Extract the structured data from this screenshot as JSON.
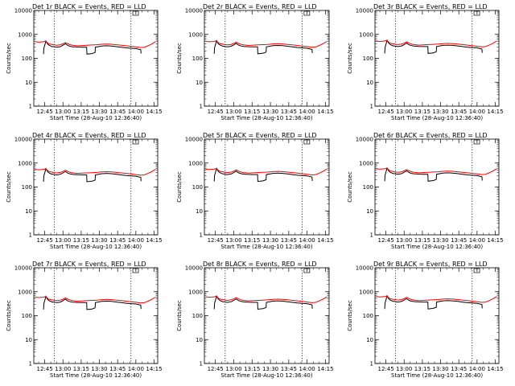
{
  "chart_data": {
    "type": "line",
    "xlabel": "Start Time (28-Aug-10 12:36:40)",
    "ylabel": "Counts/sec",
    "x_ticks": [
      "12:45",
      "13:00",
      "13:15",
      "13:30",
      "13:45",
      "14:00",
      "14:15"
    ],
    "x_tick_minutes": [
      45,
      60,
      75,
      90,
      105,
      120,
      135
    ],
    "xlim_minutes_after_12": [
      36,
      138
    ],
    "y_scale": "log",
    "ylim": [
      1,
      10000
    ],
    "y_ticks": [
      "1",
      "10",
      "100",
      "1000",
      "10000"
    ],
    "y_tick_values": [
      1,
      10,
      100,
      1000,
      10000
    ],
    "vertical_dashed_lines_minutes": [
      53,
      116
    ],
    "series_colors": {
      "events": "#000000",
      "lld": "#ff0000"
    },
    "panels": [
      {
        "title": "Det 1r BLACK = Events, RED = LLD"
      },
      {
        "title": "Det 2r BLACK = Events, RED = LLD"
      },
      {
        "title": "Det 3r BLACK = Events, RED = LLD"
      },
      {
        "title": "Det 4r BLACK = Events, RED = LLD"
      },
      {
        "title": "Det 5r BLACK = Events, RED = LLD"
      },
      {
        "title": "Det 6r BLACK = Events, RED = LLD"
      },
      {
        "title": "Det 7r BLACK = Events, RED = LLD"
      },
      {
        "title": "Det 8r BLACK = Events, RED = LLD"
      },
      {
        "title": "Det 9r BLACK = Events, RED = LLD"
      }
    ],
    "lld": {
      "x_minutes": [
        37,
        40,
        44,
        46,
        47,
        48,
        49,
        50,
        51,
        52,
        53,
        55,
        58,
        60,
        62,
        64,
        66,
        68,
        70,
        72,
        76,
        80,
        84,
        88,
        92,
        96,
        100,
        104,
        108,
        112,
        116,
        120,
        124,
        127,
        130,
        133,
        136
      ],
      "y": [
        560,
        540,
        560,
        600,
        520,
        470,
        450,
        440,
        430,
        420,
        410,
        400,
        420,
        460,
        520,
        460,
        420,
        400,
        390,
        380,
        390,
        400,
        410,
        420,
        440,
        450,
        440,
        420,
        400,
        380,
        360,
        340,
        320,
        330,
        380,
        450,
        560
      ]
    },
    "events": {
      "x_minutes": [
        44,
        44.3,
        46,
        47,
        48,
        49,
        50,
        51,
        52,
        53,
        55,
        58,
        60,
        62,
        64,
        66,
        68,
        70,
        72,
        76,
        79.5,
        79.7,
        84,
        86.5,
        86.7,
        92,
        96,
        100,
        104,
        108,
        112,
        116,
        120,
        124,
        124.3
      ],
      "y": [
        170,
        300,
        600,
        480,
        420,
        390,
        370,
        350,
        350,
        340,
        330,
        350,
        400,
        460,
        390,
        360,
        345,
        340,
        335,
        330,
        330,
        170,
        180,
        200,
        330,
        370,
        380,
        370,
        350,
        330,
        310,
        300,
        290,
        260,
        180
      ]
    }
  }
}
